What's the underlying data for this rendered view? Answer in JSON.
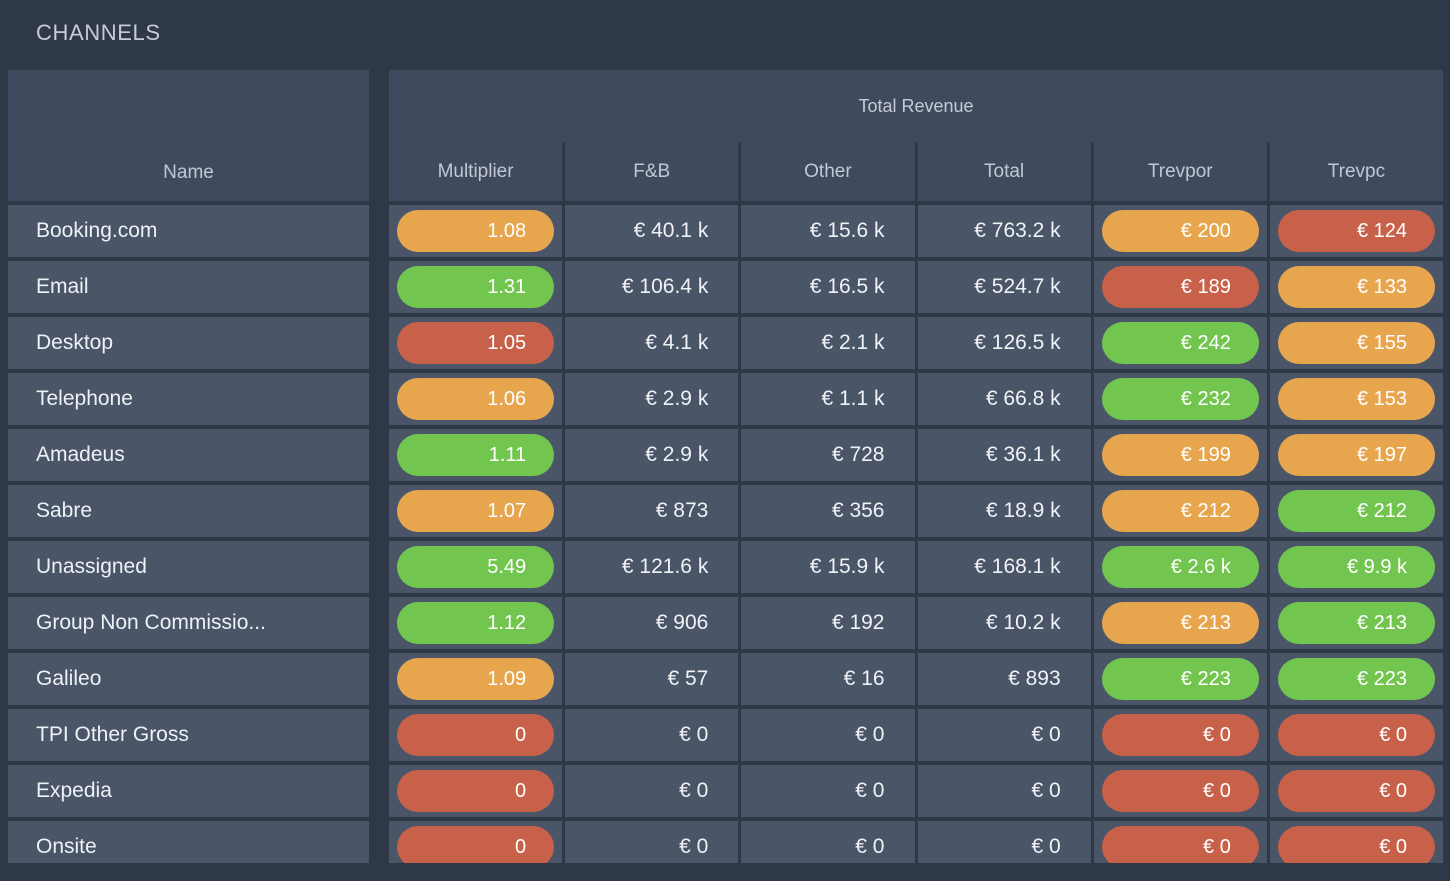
{
  "title": "CHANNELS",
  "colors": {
    "green": "#72c64f",
    "orange": "#e7a64e",
    "red": "#c7614a",
    "page_background": "#2e3847",
    "panel_header_background": "#3f4a5e",
    "row_background": "#4a5568"
  },
  "table": {
    "name_header": "Name",
    "group_header": "Total Revenue",
    "columns": [
      "Multiplier",
      "F&B",
      "Other",
      "Total",
      "Trevpor",
      "Trevpc"
    ],
    "rows": [
      {
        "name": "Booking.com",
        "multiplier": {
          "value": "1.08",
          "color": "orange"
        },
        "fb": "€ 40.1 k",
        "other": "€ 15.6 k",
        "total": "€ 763.2 k",
        "trevpor": {
          "value": "€ 200",
          "color": "orange"
        },
        "trevpc": {
          "value": "€ 124",
          "color": "red"
        }
      },
      {
        "name": "Email",
        "multiplier": {
          "value": "1.31",
          "color": "green"
        },
        "fb": "€ 106.4 k",
        "other": "€ 16.5 k",
        "total": "€ 524.7 k",
        "trevpor": {
          "value": "€ 189",
          "color": "red"
        },
        "trevpc": {
          "value": "€ 133",
          "color": "orange"
        }
      },
      {
        "name": "Desktop",
        "multiplier": {
          "value": "1.05",
          "color": "red"
        },
        "fb": "€ 4.1 k",
        "other": "€ 2.1 k",
        "total": "€ 126.5 k",
        "trevpor": {
          "value": "€ 242",
          "color": "green"
        },
        "trevpc": {
          "value": "€ 155",
          "color": "orange"
        }
      },
      {
        "name": "Telephone",
        "multiplier": {
          "value": "1.06",
          "color": "orange"
        },
        "fb": "€ 2.9 k",
        "other": "€ 1.1 k",
        "total": "€ 66.8 k",
        "trevpor": {
          "value": "€ 232",
          "color": "green"
        },
        "trevpc": {
          "value": "€ 153",
          "color": "orange"
        }
      },
      {
        "name": "Amadeus",
        "multiplier": {
          "value": "1.11",
          "color": "green"
        },
        "fb": "€ 2.9 k",
        "other": "€ 728",
        "total": "€ 36.1 k",
        "trevpor": {
          "value": "€ 199",
          "color": "orange"
        },
        "trevpc": {
          "value": "€ 197",
          "color": "orange"
        }
      },
      {
        "name": "Sabre",
        "multiplier": {
          "value": "1.07",
          "color": "orange"
        },
        "fb": "€ 873",
        "other": "€ 356",
        "total": "€ 18.9 k",
        "trevpor": {
          "value": "€ 212",
          "color": "orange"
        },
        "trevpc": {
          "value": "€ 212",
          "color": "green"
        }
      },
      {
        "name": "Unassigned",
        "multiplier": {
          "value": "5.49",
          "color": "green"
        },
        "fb": "€ 121.6 k",
        "other": "€ 15.9 k",
        "total": "€ 168.1 k",
        "trevpor": {
          "value": "€ 2.6 k",
          "color": "green"
        },
        "trevpc": {
          "value": "€ 9.9 k",
          "color": "green"
        }
      },
      {
        "name": "Group Non Commissio...",
        "multiplier": {
          "value": "1.12",
          "color": "green"
        },
        "fb": "€ 906",
        "other": "€ 192",
        "total": "€ 10.2 k",
        "trevpor": {
          "value": "€ 213",
          "color": "orange"
        },
        "trevpc": {
          "value": "€ 213",
          "color": "green"
        }
      },
      {
        "name": "Galileo",
        "multiplier": {
          "value": "1.09",
          "color": "orange"
        },
        "fb": "€ 57",
        "other": "€ 16",
        "total": "€ 893",
        "trevpor": {
          "value": "€ 223",
          "color": "green"
        },
        "trevpc": {
          "value": "€ 223",
          "color": "green"
        }
      },
      {
        "name": "TPI Other Gross",
        "multiplier": {
          "value": "0",
          "color": "red"
        },
        "fb": "€ 0",
        "other": "€ 0",
        "total": "€ 0",
        "trevpor": {
          "value": "€ 0",
          "color": "red"
        },
        "trevpc": {
          "value": "€ 0",
          "color": "red"
        }
      },
      {
        "name": "Expedia",
        "multiplier": {
          "value": "0",
          "color": "red"
        },
        "fb": "€ 0",
        "other": "€ 0",
        "total": "€ 0",
        "trevpor": {
          "value": "€ 0",
          "color": "red"
        },
        "trevpc": {
          "value": "€ 0",
          "color": "red"
        }
      },
      {
        "name": "Onsite",
        "multiplier": {
          "value": "0",
          "color": "red"
        },
        "fb": "€ 0",
        "other": "€ 0",
        "total": "€ 0",
        "trevpor": {
          "value": "€ 0",
          "color": "red"
        },
        "trevpc": {
          "value": "€ 0",
          "color": "red"
        }
      }
    ]
  }
}
